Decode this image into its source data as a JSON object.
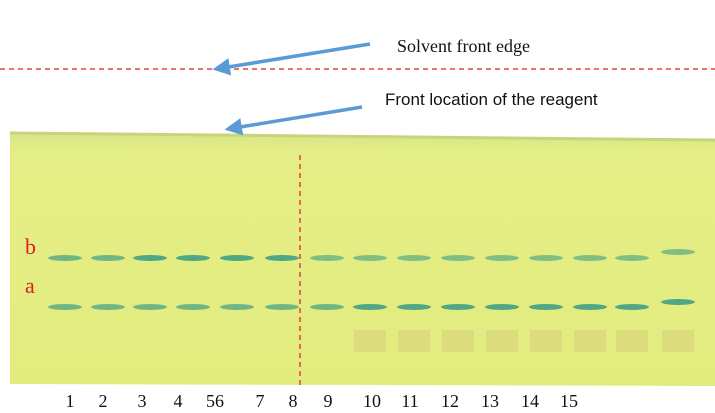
{
  "annotations": {
    "solvent_front": "Solvent front edge",
    "reagent_front": "Front location of the reagent"
  },
  "band_labels": {
    "upper": "b",
    "lower": "a"
  },
  "lane_labels": [
    "1",
    "2",
    "3",
    "4",
    "56",
    "7",
    "8",
    "9",
    "10",
    "11",
    "12",
    "13",
    "14",
    "15"
  ]
}
